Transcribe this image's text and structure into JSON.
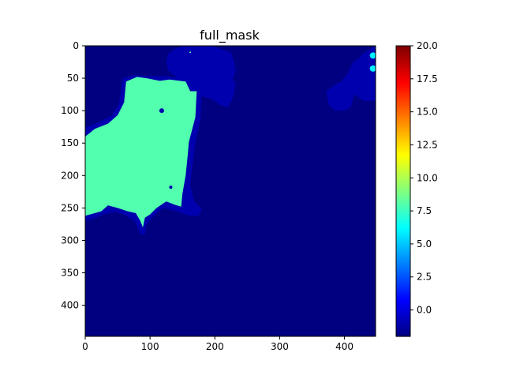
{
  "chart_data": {
    "type": "heatmap",
    "title": "full_mask",
    "xlabel": "",
    "ylabel": "",
    "colormap": "jet",
    "value_range": [
      -2,
      20
    ],
    "x_ticks": [
      0,
      100,
      200,
      300,
      400
    ],
    "y_ticks": [
      0,
      50,
      100,
      150,
      200,
      250,
      300,
      350,
      400
    ],
    "xlim": [
      0,
      448
    ],
    "ylim": [
      448,
      0
    ],
    "colorbar_ticks": [
      -0.0,
      2.5,
      5.0,
      7.5,
      10.0,
      12.5,
      15.0,
      17.5,
      20.0
    ],
    "colorbar_tick_labels": [
      "0.0",
      "2.5",
      "5.0",
      "7.5",
      "10.0",
      "12.5",
      "15.0",
      "17.5",
      "20.0"
    ],
    "background_value": -2,
    "regions": [
      {
        "label": "main_region",
        "value": 8,
        "polygon": [
          [
            0,
            140
          ],
          [
            15,
            128
          ],
          [
            35,
            120
          ],
          [
            50,
            107
          ],
          [
            60,
            87
          ],
          [
            63,
            55
          ],
          [
            80,
            48
          ],
          [
            95,
            50
          ],
          [
            115,
            54
          ],
          [
            130,
            52
          ],
          [
            155,
            55
          ],
          [
            162,
            70
          ],
          [
            172,
            70
          ],
          [
            170,
            110
          ],
          [
            160,
            148
          ],
          [
            158,
            170
          ],
          [
            155,
            200
          ],
          [
            150,
            228
          ],
          [
            148,
            248
          ],
          [
            138,
            245
          ],
          [
            125,
            240
          ],
          [
            110,
            250
          ],
          [
            100,
            260
          ],
          [
            92,
            265
          ],
          [
            89,
            280
          ],
          [
            85,
            270
          ],
          [
            78,
            258
          ],
          [
            65,
            255
          ],
          [
            50,
            250
          ],
          [
            35,
            246
          ],
          [
            25,
            255
          ],
          [
            15,
            258
          ],
          [
            0,
            262
          ]
        ]
      },
      {
        "label": "border_region",
        "value": -1,
        "polygon": [
          [
            0,
            126
          ],
          [
            20,
            118
          ],
          [
            40,
            108
          ],
          [
            52,
            90
          ],
          [
            58,
            50
          ],
          [
            75,
            45
          ],
          [
            100,
            47
          ],
          [
            128,
            47
          ],
          [
            148,
            50
          ],
          [
            168,
            58
          ],
          [
            180,
            68
          ],
          [
            178,
            112
          ],
          [
            170,
            150
          ],
          [
            166,
            180
          ],
          [
            162,
            215
          ],
          [
            168,
            240
          ],
          [
            180,
            252
          ],
          [
            175,
            262
          ],
          [
            160,
            262
          ],
          [
            140,
            255
          ],
          [
            120,
            250
          ],
          [
            104,
            264
          ],
          [
            95,
            276
          ],
          [
            92,
            292
          ],
          [
            85,
            290
          ],
          [
            76,
            270
          ],
          [
            60,
            260
          ],
          [
            45,
            256
          ],
          [
            28,
            260
          ],
          [
            15,
            266
          ],
          [
            0,
            270
          ]
        ]
      },
      {
        "label": "top_blob",
        "value": -1,
        "polygon": [
          [
            128,
            12
          ],
          [
            138,
            5
          ],
          [
            150,
            1
          ],
          [
            175,
            0
          ],
          [
            195,
            0
          ],
          [
            210,
            5
          ],
          [
            225,
            10
          ],
          [
            230,
            25
          ],
          [
            232,
            40
          ],
          [
            228,
            50
          ],
          [
            232,
            60
          ],
          [
            228,
            80
          ],
          [
            220,
            95
          ],
          [
            210,
            92
          ],
          [
            195,
            82
          ],
          [
            180,
            78
          ],
          [
            170,
            65
          ],
          [
            155,
            55
          ],
          [
            140,
            48
          ],
          [
            128,
            38
          ],
          [
            125,
            25
          ]
        ]
      },
      {
        "label": "right_blob",
        "value": -1,
        "polygon": [
          [
            372,
            70
          ],
          [
            385,
            60
          ],
          [
            395,
            55
          ],
          [
            405,
            42
          ],
          [
            413,
            25
          ],
          [
            422,
            20
          ],
          [
            428,
            12
          ],
          [
            440,
            5
          ],
          [
            448,
            0
          ],
          [
            448,
            85
          ],
          [
            430,
            85
          ],
          [
            415,
            75
          ],
          [
            410,
            95
          ],
          [
            400,
            100
          ],
          [
            385,
            100
          ],
          [
            375,
            90
          ]
        ]
      },
      {
        "label": "right_blob_small",
        "value": -1,
        "polygon": [
          [
            392,
            72
          ],
          [
            402,
            58
          ],
          [
            408,
            48
          ],
          [
            412,
            40
          ],
          [
            412,
            70
          ],
          [
            405,
            85
          ],
          [
            396,
            85
          ]
        ]
      }
    ],
    "dots": [
      {
        "value": 6,
        "x": 444,
        "y": 15,
        "r": 4
      },
      {
        "value": 6,
        "x": 444,
        "y": 35,
        "r": 4
      }
    ],
    "speckles": [
      {
        "value": -1,
        "x": 118,
        "y": 100,
        "r": 3
      },
      {
        "value": -1,
        "x": 132,
        "y": 218,
        "r": 2
      },
      {
        "value": 8,
        "x": 162,
        "y": 10,
        "r": 1
      }
    ]
  }
}
